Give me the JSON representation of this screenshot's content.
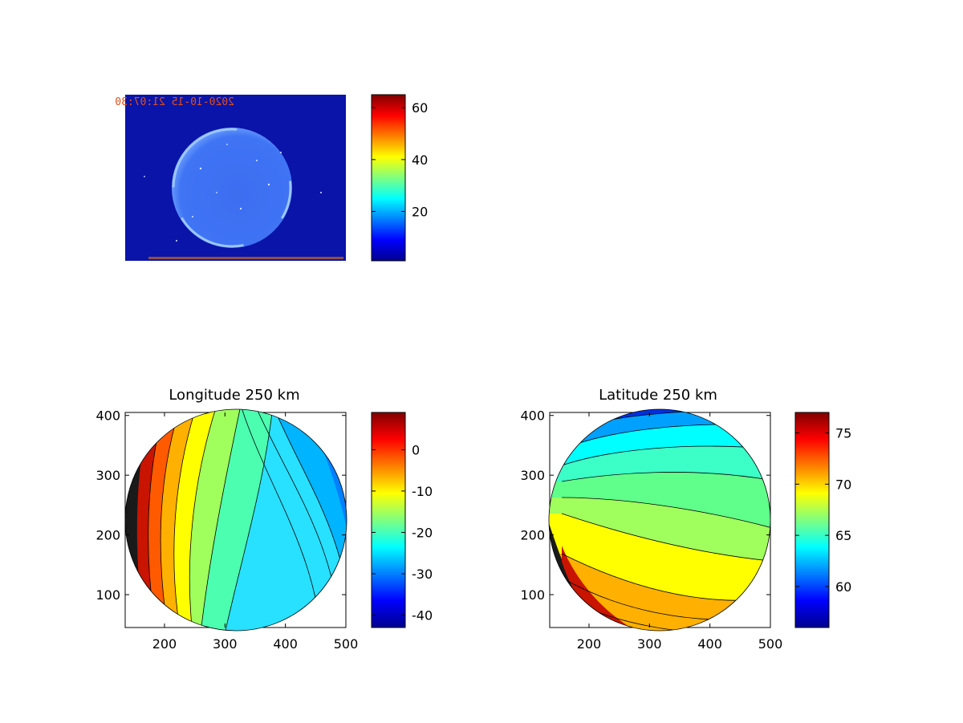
{
  "colors": {
    "background": "#ffffff",
    "image_background": "#0a14a8",
    "contour_line": "#000000",
    "stamp_text": "#e0501a"
  },
  "colormap": "jet",
  "chart_data": [
    {
      "type": "heatmap",
      "name": "image-panel",
      "title": "",
      "xlabel": "",
      "ylabel": "",
      "image_stamp": "2020-10-15 21:07:30",
      "stamp_orientation": "mirrored",
      "colorbar": {
        "min": 1,
        "max": 65,
        "ticks": [
          20,
          40,
          60
        ]
      }
    },
    {
      "type": "heatmap",
      "name": "longitude-panel",
      "title": "Longitude 250 km",
      "xlabel": "",
      "ylabel": "",
      "xlim": [
        135,
        500
      ],
      "ylim": [
        45,
        405
      ],
      "xticks": [
        200,
        300,
        400,
        500
      ],
      "yticks": [
        100,
        200,
        300,
        400
      ],
      "contours": "filled with black contour lines",
      "colorbar": {
        "min": -43,
        "max": 9,
        "ticks": [
          -40,
          -30,
          -20,
          -10,
          0
        ]
      }
    },
    {
      "type": "heatmap",
      "name": "latitude-panel",
      "title": "Latitude 250 km",
      "xlabel": "",
      "ylabel": "",
      "xlim": [
        135,
        500
      ],
      "ylim": [
        45,
        405
      ],
      "xticks": [
        200,
        300,
        400,
        500
      ],
      "yticks": [
        100,
        200,
        300,
        400
      ],
      "contours": "filled with black contour lines",
      "colorbar": {
        "min": 56,
        "max": 77,
        "ticks": [
          60,
          65,
          70,
          75
        ]
      }
    }
  ]
}
